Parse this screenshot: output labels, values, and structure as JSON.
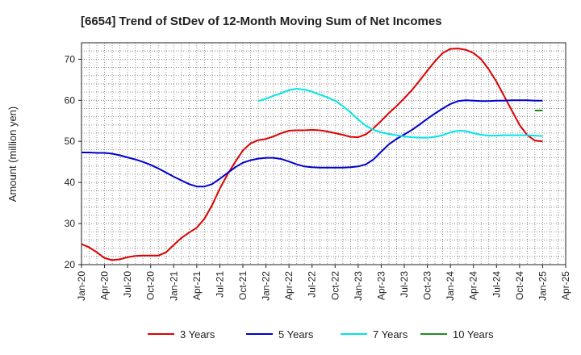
{
  "chart_data": {
    "type": "line",
    "title": "[6654]  Trend of StDev of 12-Month Moving Sum of Net Incomes",
    "xlabel": "",
    "ylabel": "Amount (million yen)",
    "ylim": [
      20,
      74
    ],
    "yticks": [
      20,
      30,
      40,
      50,
      60,
      70
    ],
    "xlim": [
      "2020-01",
      "2025-04"
    ],
    "xtick_labels": [
      "Jan-20",
      "Apr-20",
      "Jul-20",
      "Oct-20",
      "Jan-21",
      "Apr-21",
      "Jul-21",
      "Oct-21",
      "Jan-22",
      "Apr-22",
      "Jul-22",
      "Oct-22",
      "Jan-23",
      "Apr-23",
      "Jul-23",
      "Oct-23",
      "Jan-24",
      "Apr-24",
      "Jul-24",
      "Oct-24",
      "Jan-25",
      "Apr-25"
    ],
    "grid": true,
    "legend_position": "bottom",
    "series": [
      {
        "name": "3 Years",
        "color": "#dd0000",
        "x": [
          "2020-01",
          "2020-02",
          "2020-03",
          "2020-04",
          "2020-05",
          "2020-06",
          "2020-07",
          "2020-08",
          "2020-09",
          "2020-10",
          "2020-11",
          "2020-12",
          "2021-01",
          "2021-02",
          "2021-03",
          "2021-04",
          "2021-05",
          "2021-06",
          "2021-07",
          "2021-08",
          "2021-09",
          "2021-10",
          "2021-11",
          "2021-12",
          "2022-01",
          "2022-02",
          "2022-03",
          "2022-04",
          "2022-05",
          "2022-06",
          "2022-07",
          "2022-08",
          "2022-09",
          "2022-10",
          "2022-11",
          "2022-12",
          "2023-01",
          "2023-02",
          "2023-03",
          "2023-04",
          "2023-05",
          "2023-06",
          "2023-07",
          "2023-08",
          "2023-09",
          "2023-10",
          "2023-11",
          "2023-12",
          "2024-01",
          "2024-02",
          "2024-03",
          "2024-04",
          "2024-05",
          "2024-06",
          "2024-07",
          "2024-08",
          "2024-09",
          "2024-10",
          "2024-11",
          "2024-12",
          "2025-01"
        ],
        "values": [
          25.0,
          24.2,
          23.0,
          21.6,
          21.1,
          21.3,
          21.8,
          22.1,
          22.2,
          22.2,
          22.2,
          23.0,
          24.8,
          26.5,
          27.8,
          29.0,
          31.2,
          34.5,
          38.5,
          42.0,
          45.0,
          47.8,
          49.5,
          50.3,
          50.6,
          51.2,
          52.0,
          52.6,
          52.7,
          52.7,
          52.8,
          52.7,
          52.4,
          52.0,
          51.6,
          51.1,
          51.0,
          51.7,
          53.2,
          55.0,
          56.9,
          58.6,
          60.5,
          62.5,
          64.8,
          67.2,
          69.5,
          71.5,
          72.5,
          72.6,
          72.3,
          71.5,
          70.0,
          67.5,
          64.5,
          61.0,
          57.5,
          54.0,
          51.5,
          50.2,
          50.0
        ]
      },
      {
        "name": "5 Years",
        "color": "#0000cc",
        "x": [
          "2020-01",
          "2020-02",
          "2020-03",
          "2020-04",
          "2020-05",
          "2020-06",
          "2020-07",
          "2020-08",
          "2020-09",
          "2020-10",
          "2020-11",
          "2020-12",
          "2021-01",
          "2021-02",
          "2021-03",
          "2021-04",
          "2021-05",
          "2021-06",
          "2021-07",
          "2021-08",
          "2021-09",
          "2021-10",
          "2021-11",
          "2021-12",
          "2022-01",
          "2022-02",
          "2022-03",
          "2022-04",
          "2022-05",
          "2022-06",
          "2022-07",
          "2022-08",
          "2022-09",
          "2022-10",
          "2022-11",
          "2022-12",
          "2023-01",
          "2023-02",
          "2023-03",
          "2023-04",
          "2023-05",
          "2023-06",
          "2023-07",
          "2023-08",
          "2023-09",
          "2023-10",
          "2023-11",
          "2023-12",
          "2024-01",
          "2024-02",
          "2024-03",
          "2024-04",
          "2024-05",
          "2024-06",
          "2024-07",
          "2024-08",
          "2024-09",
          "2024-10",
          "2024-11",
          "2024-12",
          "2025-01"
        ],
        "values": [
          47.3,
          47.3,
          47.2,
          47.2,
          47.0,
          46.6,
          46.1,
          45.6,
          45.0,
          44.3,
          43.4,
          42.4,
          41.4,
          40.5,
          39.6,
          39.0,
          39.0,
          39.6,
          40.9,
          42.3,
          43.7,
          44.8,
          45.4,
          45.8,
          46.0,
          46.0,
          45.7,
          45.1,
          44.4,
          43.9,
          43.7,
          43.6,
          43.6,
          43.6,
          43.6,
          43.7,
          43.9,
          44.4,
          45.6,
          47.5,
          49.3,
          50.6,
          51.7,
          52.8,
          54.1,
          55.5,
          56.8,
          58.0,
          59.1,
          59.8,
          60.0,
          59.9,
          59.8,
          59.8,
          59.9,
          59.9,
          60.0,
          60.0,
          60.0,
          59.9,
          59.9
        ]
      },
      {
        "name": "7 Years",
        "color": "#00e5e5",
        "x": [
          "2021-12",
          "2022-01",
          "2022-02",
          "2022-03",
          "2022-04",
          "2022-05",
          "2022-06",
          "2022-07",
          "2022-08",
          "2022-09",
          "2022-10",
          "2022-11",
          "2022-12",
          "2023-01",
          "2023-02",
          "2023-03",
          "2023-04",
          "2023-05",
          "2023-06",
          "2023-07",
          "2023-08",
          "2023-09",
          "2023-10",
          "2023-11",
          "2023-12",
          "2024-01",
          "2024-02",
          "2024-03",
          "2024-04",
          "2024-05",
          "2024-06",
          "2024-07",
          "2024-08",
          "2024-09",
          "2024-10",
          "2024-11",
          "2024-12",
          "2025-01"
        ],
        "values": [
          59.8,
          60.4,
          61.1,
          61.7,
          62.5,
          62.8,
          62.6,
          62.1,
          61.4,
          60.7,
          59.9,
          58.6,
          57.1,
          55.3,
          53.8,
          52.8,
          52.2,
          51.8,
          51.5,
          51.2,
          51.0,
          50.9,
          50.9,
          51.1,
          51.5,
          52.2,
          52.6,
          52.5,
          52.0,
          51.6,
          51.4,
          51.4,
          51.5,
          51.5,
          51.5,
          51.5,
          51.4,
          51.3
        ]
      },
      {
        "name": "10 Years",
        "color": "#228b22",
        "x": [
          "2024-12",
          "2025-01"
        ],
        "values": [
          57.5,
          57.5
        ]
      }
    ]
  }
}
